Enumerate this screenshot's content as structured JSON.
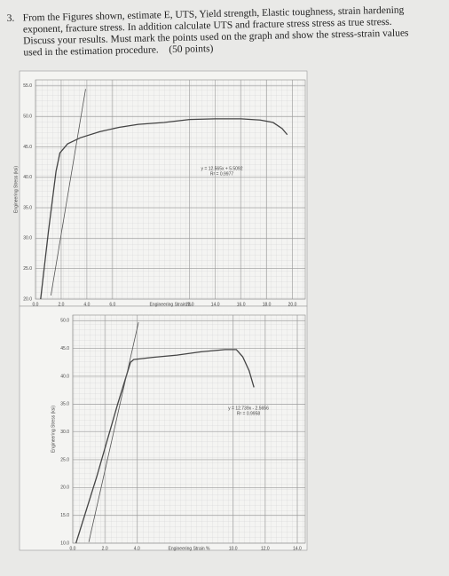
{
  "question": {
    "number": "3.",
    "text": "From the Figures shown, estimate E, UTS, Yield strength, Elastic toughness, strain hardening exponent, fracture stress. In addition calculate UTS and fracture stress stress as true stress. Discuss your results. Must mark the points used on the graph and show the stress-strain values used in the estimation procedure.",
    "points": "(50 points)"
  },
  "chart_data": [
    {
      "type": "line",
      "xlabel": "Engineering Strain %",
      "ylabel": "Engineering Stress (ksi)",
      "annotation": [
        "y = 12.565x + 5.5092",
        "R² = 0.9977"
      ],
      "xlim": [
        0,
        21
      ],
      "ylim": [
        20,
        56
      ],
      "xticks": [
        {
          "value": 0,
          "label": "0.0"
        },
        {
          "value": 2,
          "label": "2.0"
        },
        {
          "value": 4,
          "label": "4.0"
        },
        {
          "value": 6,
          "label": "6.0"
        },
        {
          "value": 12,
          "label": "12.0"
        },
        {
          "value": 14,
          "label": "14.0"
        },
        {
          "value": 16,
          "label": "16.0"
        },
        {
          "value": 18,
          "label": "18.0"
        },
        {
          "value": 20,
          "label": "20.0"
        }
      ],
      "yticks": [
        {
          "value": 20,
          "label": "20.0"
        },
        {
          "value": 25,
          "label": "25.0"
        },
        {
          "value": 30,
          "label": "30.0"
        },
        {
          "value": 35,
          "label": "35.0"
        },
        {
          "value": 40,
          "label": "40.0"
        },
        {
          "value": 45,
          "label": "45.0"
        },
        {
          "value": 50,
          "label": "50.0"
        },
        {
          "value": 55,
          "label": "55.0"
        }
      ],
      "series": [
        {
          "color": "#444444",
          "x": [
            0.4,
            1.0,
            1.6,
            1.9,
            2.5,
            3.5,
            5,
            6.5,
            8,
            10,
            12,
            14,
            16,
            17.5,
            18.5,
            19.2,
            19.6
          ],
          "values": [
            20,
            31,
            41,
            44,
            45.5,
            46.5,
            47.5,
            48.2,
            48.7,
            49,
            49.5,
            49.6,
            49.6,
            49.4,
            49,
            48,
            47
          ]
        },
        {
          "color": "#555555",
          "x": [
            1.2,
            3.9
          ],
          "values": [
            20.6,
            54.5
          ]
        }
      ]
    },
    {
      "type": "line",
      "xlabel": "Engineering Strain %",
      "ylabel": "Engineering Stress (ksi)",
      "annotation": [
        "y = 12.739x - 2.5656",
        "R² = 0.9958"
      ],
      "xlim": [
        0,
        14.5
      ],
      "ylim": [
        10,
        51
      ],
      "xticks": [
        {
          "value": 0,
          "label": "0.0"
        },
        {
          "value": 2,
          "label": "2.0"
        },
        {
          "value": 4,
          "label": "4.0"
        },
        {
          "value": 10,
          "label": "10.0"
        },
        {
          "value": 12,
          "label": "12.0"
        },
        {
          "value": 14,
          "label": "14.0"
        }
      ],
      "yticks": [
        {
          "value": 10,
          "label": "10.0"
        },
        {
          "value": 15,
          "label": "15.0"
        },
        {
          "value": 20,
          "label": "20.0"
        },
        {
          "value": 25,
          "label": "25.0"
        },
        {
          "value": 30,
          "label": "30.0"
        },
        {
          "value": 35,
          "label": "35.0"
        },
        {
          "value": 40,
          "label": "40.0"
        },
        {
          "value": 45,
          "label": "45.0"
        },
        {
          "value": 50,
          "label": "50.0"
        }
      ],
      "series": [
        {
          "color": "#444444",
          "x": [
            0.2,
            1.5,
            2.8,
            3.6,
            3.8,
            5,
            6.5,
            8,
            9.5,
            10.2,
            10.6,
            11,
            11.3
          ],
          "values": [
            10,
            22,
            35,
            42.5,
            43,
            43.4,
            43.8,
            44.4,
            44.8,
            44.8,
            43.5,
            41,
            38
          ]
        },
        {
          "color": "#555555",
          "x": [
            1,
            4.1
          ],
          "values": [
            10.2,
            49.7
          ]
        }
      ]
    }
  ]
}
